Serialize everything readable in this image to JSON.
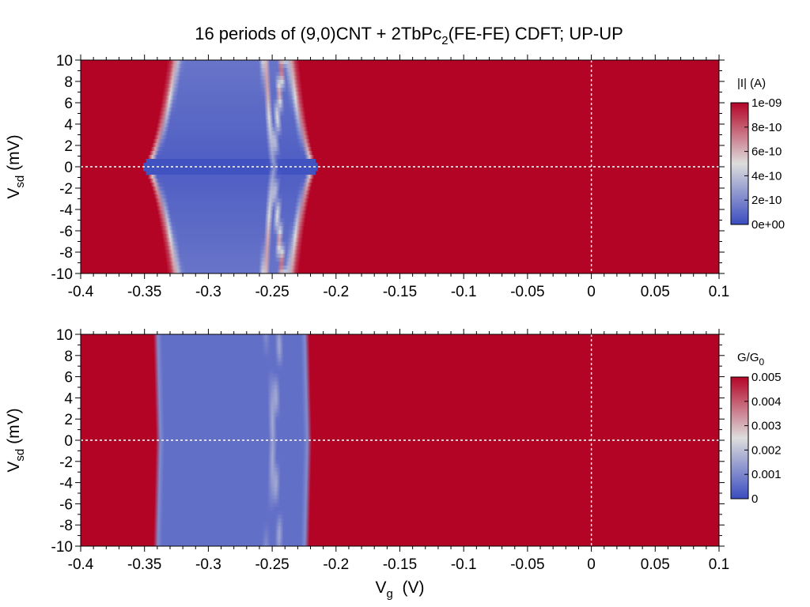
{
  "figure": {
    "title_main": "16 periods of (9,0)CNT + 2TbPc",
    "title_sub": "2",
    "title_end": "(FE-FE) CDFT; UP-UP"
  },
  "colors": {
    "high": "#b40426",
    "mid": "#dddddd",
    "low": "#3b4cc0",
    "guide": "#ffffff"
  },
  "chart_data": [
    {
      "type": "heatmap",
      "quantity": "current",
      "xlabel": "V",
      "xlabel_sub": "g",
      "xlabel_unit": "(V)",
      "ylabel": "V",
      "ylabel_sub": "sd",
      "ylabel_unit": "(mV)",
      "xlim": [
        -0.4,
        0.1
      ],
      "ylim": [
        -10,
        10
      ],
      "xticks": [
        -0.4,
        -0.35,
        -0.3,
        -0.25,
        -0.2,
        -0.15,
        -0.1,
        -0.05,
        0,
        0.05,
        0.1
      ],
      "xtick_labels": [
        "-0.4",
        "-0.35",
        "-0.3",
        "-0.25",
        "-0.2",
        "-0.15",
        "-0.1",
        "-0.05",
        "0",
        "0.05",
        "0.1"
      ],
      "yticks": [
        -10,
        -8,
        -6,
        -4,
        -2,
        0,
        2,
        4,
        6,
        8,
        10
      ],
      "ytick_labels": [
        "-10",
        "-8",
        "-6",
        "-4",
        "-2",
        "0",
        "2",
        "4",
        "6",
        "8",
        "10"
      ],
      "colorbar": {
        "label": "|I| (A)",
        "label_sub": "",
        "range": [
          0,
          1e-09
        ],
        "ticks": [
          0,
          2e-10,
          4e-10,
          6e-10,
          8e-10,
          1e-09
        ],
        "tick_labels": [
          "0e+00",
          "2e-10",
          "4e-10",
          "6e-10",
          "8e-10",
          "1e-09"
        ]
      },
      "guide_lines": {
        "x": 0,
        "y": 0
      },
      "blockade_region": {
        "left_edge_at_zero_bias": -0.354,
        "left_edge_at_max_bias": -0.332,
        "right_edge_at_zero_bias": -0.212,
        "right_edge_at_max_bias": -0.229,
        "inner_crossing": -0.249,
        "inner_crossing_spread": 0.007
      }
    },
    {
      "type": "heatmap",
      "quantity": "conductance",
      "xlabel": "V",
      "xlabel_sub": "g",
      "xlabel_unit": "(V)",
      "ylabel": "V",
      "ylabel_sub": "sd",
      "ylabel_unit": "(mV)",
      "xlim": [
        -0.4,
        0.1
      ],
      "ylim": [
        -10,
        10
      ],
      "xticks": [
        -0.4,
        -0.35,
        -0.3,
        -0.25,
        -0.2,
        -0.15,
        -0.1,
        -0.05,
        0,
        0.05,
        0.1
      ],
      "xtick_labels": [
        "-0.4",
        "-0.35",
        "-0.3",
        "-0.25",
        "-0.2",
        "-0.15",
        "-0.1",
        "-0.05",
        "0",
        "0.05",
        "0.1"
      ],
      "yticks": [
        -10,
        -8,
        -6,
        -4,
        -2,
        0,
        2,
        4,
        6,
        8,
        10
      ],
      "ytick_labels": [
        "-10",
        "-8",
        "-6",
        "-4",
        "-2",
        "0",
        "2",
        "4",
        "6",
        "8",
        "10"
      ],
      "colorbar": {
        "label": "G/G",
        "label_sub": "0",
        "range": [
          0,
          0.005
        ],
        "ticks": [
          0,
          0.001,
          0.002,
          0.003,
          0.004,
          0.005
        ],
        "tick_labels": [
          "0",
          "0.001",
          "0.002",
          "0.003",
          "0.004",
          "0.005"
        ]
      },
      "guide_lines": {
        "x": 0,
        "y": 0
      },
      "blockade_region": {
        "left_edge_at_zero_bias": -0.341,
        "left_edge_at_max_bias": -0.343,
        "right_edge_at_zero_bias": -0.219,
        "right_edge_at_max_bias": -0.221,
        "inner_crossing": -0.249,
        "inner_crossing_spread": 0.005
      }
    }
  ]
}
